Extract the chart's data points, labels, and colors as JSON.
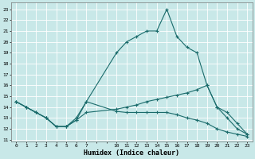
{
  "xlabel": "Humidex (Indice chaleur)",
  "bg_color": "#c8e8e8",
  "line_color": "#1a6b6b",
  "grid_color": "#ffffff",
  "xlim": [
    -0.5,
    23.5
  ],
  "ylim": [
    10.8,
    23.6
  ],
  "yticks": [
    11,
    12,
    13,
    14,
    15,
    16,
    17,
    18,
    19,
    20,
    21,
    22,
    23
  ],
  "xticks": [
    0,
    1,
    2,
    3,
    4,
    5,
    6,
    7,
    10,
    11,
    12,
    13,
    14,
    15,
    16,
    17,
    18,
    19,
    20,
    21,
    22,
    23
  ],
  "line1_x": [
    0,
    1,
    2,
    3,
    4,
    5,
    6,
    7,
    10,
    11,
    12,
    13,
    14,
    15,
    16,
    17,
    18,
    19,
    20,
    21,
    22,
    23
  ],
  "line1_y": [
    14.5,
    14.0,
    13.5,
    13.0,
    12.2,
    12.2,
    13.0,
    14.5,
    19.0,
    20.0,
    20.5,
    21.0,
    21.0,
    23.0,
    20.5,
    19.5,
    19.0,
    16.0,
    14.0,
    13.0,
    12.0,
    11.5
  ],
  "line2_x": [
    0,
    1,
    2,
    3,
    4,
    5,
    6,
    7,
    10,
    11,
    12,
    13,
    14,
    15,
    16,
    17,
    18,
    19,
    20,
    21,
    22,
    23
  ],
  "line2_y": [
    14.5,
    14.0,
    13.5,
    13.0,
    12.2,
    12.2,
    12.8,
    13.5,
    13.8,
    14.0,
    14.2,
    14.5,
    14.7,
    14.9,
    15.1,
    15.3,
    15.6,
    16.0,
    14.0,
    13.5,
    12.5,
    11.5
  ],
  "line3_x": [
    0,
    1,
    2,
    3,
    4,
    5,
    6,
    7,
    10,
    11,
    12,
    13,
    14,
    15,
    16,
    17,
    18,
    19,
    20,
    21,
    22,
    23
  ],
  "line3_y": [
    14.5,
    14.0,
    13.5,
    13.0,
    12.2,
    12.2,
    12.8,
    14.5,
    13.6,
    13.5,
    13.5,
    13.5,
    13.5,
    13.5,
    13.3,
    13.0,
    12.8,
    12.5,
    12.0,
    11.7,
    11.5,
    11.3
  ]
}
